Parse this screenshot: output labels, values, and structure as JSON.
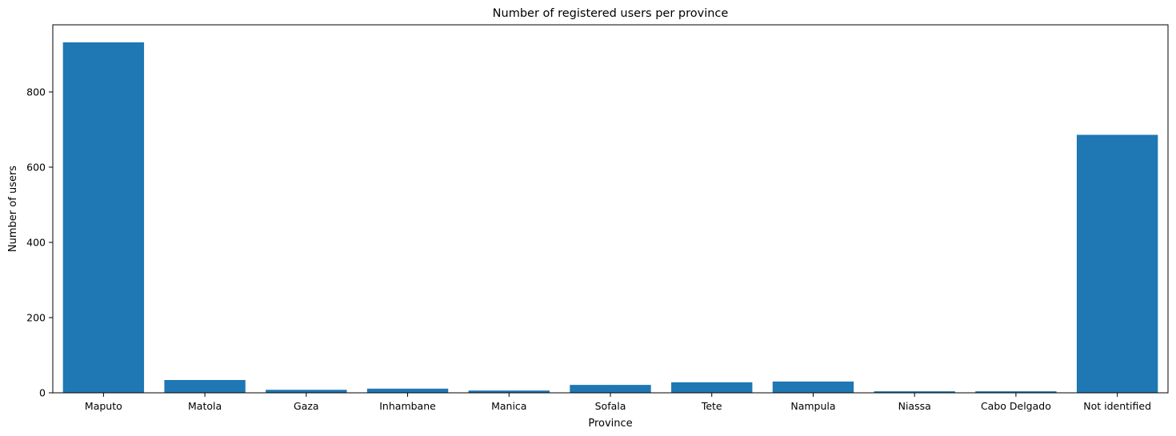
{
  "chart_data": {
    "type": "bar",
    "title": "Number of registered users per province",
    "xlabel": "Province",
    "ylabel": "Number of users",
    "categories": [
      "Maputo",
      "Matola",
      "Gaza",
      "Inhambane",
      "Manica",
      "Sofala",
      "Tete",
      "Nampula",
      "Niassa",
      "Cabo Delgado",
      "Not identified"
    ],
    "values": [
      932,
      34,
      8,
      11,
      6,
      21,
      28,
      30,
      4,
      4,
      686
    ],
    "ylim": [
      0,
      978.6
    ],
    "yticks": [
      0,
      200,
      400,
      600,
      800
    ],
    "grid": false,
    "bar_color": "#1f77b4"
  }
}
